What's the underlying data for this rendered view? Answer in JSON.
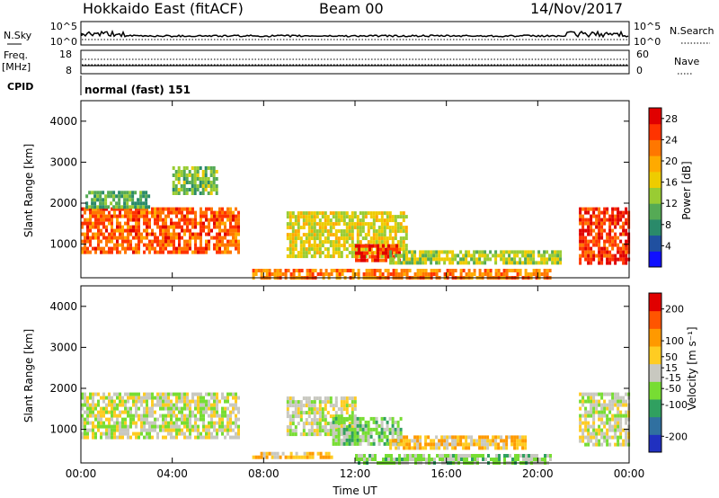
{
  "header": {
    "station": "Hokkaido East (fitACF)",
    "beam": "Beam 00",
    "date": "14/Nov/2017"
  },
  "small_panels": {
    "nsky": {
      "label": "N.Sky",
      "ticks": [
        "10^5",
        "10^0"
      ]
    },
    "nsearch": {
      "label": "N.Search",
      "ticks": [
        "10^5",
        "10^0"
      ]
    },
    "freq": {
      "label_line1": "Freq.",
      "label_line2": "[MHz]",
      "ticks": [
        "18",
        "8"
      ]
    },
    "nave": {
      "label": "Nave",
      "ticks": [
        "60",
        "0"
      ]
    },
    "cpid": {
      "label": "CPID",
      "value": "normal (fast) 151"
    }
  },
  "chart_data": [
    {
      "type": "heatmap",
      "panel": "power",
      "ylabel": "Slant Range [km]",
      "xlabel": "",
      "x_ticks": [
        "00:00",
        "04:00",
        "08:00",
        "12:00",
        "16:00",
        "20:00",
        "00:00"
      ],
      "x_range_hours": [
        0,
        24
      ],
      "y_ticks": [
        1000,
        2000,
        3000,
        4000
      ],
      "y_range_km": [
        180,
        4500
      ],
      "colorbar": {
        "label": "Power [dB]",
        "ticks": [
          4,
          8,
          12,
          16,
          20,
          24,
          28
        ],
        "range": [
          0,
          30
        ],
        "colors": [
          "#1010ff",
          "#2050a0",
          "#2a8a6a",
          "#55aa55",
          "#99cc33",
          "#eecc00",
          "#ffaa00",
          "#ff7700",
          "#ff3300",
          "#e00000"
        ]
      },
      "echo_regions": [
        {
          "t0": 0.0,
          "t1": 6.9,
          "r0": 780,
          "r1": 1900,
          "level": 24
        },
        {
          "t0": 0.2,
          "t1": 3.0,
          "r0": 1900,
          "r1": 2300,
          "level": 10
        },
        {
          "t0": 4.0,
          "t1": 6.0,
          "r0": 2200,
          "r1": 2900,
          "level": 12
        },
        {
          "t0": 9.0,
          "t1": 14.2,
          "r0": 700,
          "r1": 1800,
          "level": 16
        },
        {
          "t0": 12.0,
          "t1": 14.0,
          "r0": 600,
          "r1": 1000,
          "level": 26
        },
        {
          "t0": 13.5,
          "t1": 21.0,
          "r0": 580,
          "r1": 850,
          "level": 14
        },
        {
          "t0": 7.5,
          "t1": 20.5,
          "r0": 200,
          "r1": 400,
          "level": 22
        },
        {
          "t0": 21.8,
          "t1": 24.0,
          "r0": 500,
          "r1": 1900,
          "level": 26
        }
      ]
    },
    {
      "type": "heatmap",
      "panel": "velocity",
      "ylabel": "Slant Range [km]",
      "xlabel": "Time UT",
      "x_ticks": [
        "00:00",
        "04:00",
        "08:00",
        "12:00",
        "16:00",
        "20:00",
        "00:00"
      ],
      "x_range_hours": [
        0,
        24
      ],
      "y_ticks": [
        1000,
        2000,
        3000,
        4000
      ],
      "y_range_km": [
        180,
        4500
      ],
      "colorbar": {
        "label": "Velocity [m s⁻¹]",
        "ticks": [
          200,
          100,
          50,
          15,
          -15,
          -50,
          -100,
          -200
        ],
        "range": [
          -250,
          250
        ],
        "colors": [
          "#2030c0",
          "#3070a0",
          "#30a060",
          "#77dd33",
          "#c8c8c0",
          "#ffcc22",
          "#ff9900",
          "#ff5500",
          "#e00000"
        ]
      },
      "echo_regions": [
        {
          "t0": 0.0,
          "t1": 6.9,
          "r0": 780,
          "r1": 1900,
          "level": 0
        },
        {
          "t0": 9.0,
          "t1": 12.0,
          "r0": 900,
          "r1": 1800,
          "level": 0
        },
        {
          "t0": 11.0,
          "t1": 14.0,
          "r0": 600,
          "r1": 1300,
          "level": -50
        },
        {
          "t0": 13.5,
          "t1": 19.5,
          "r0": 580,
          "r1": 850,
          "level": 60
        },
        {
          "t0": 7.5,
          "t1": 11.0,
          "r0": 300,
          "r1": 450,
          "level": 60
        },
        {
          "t0": 12.0,
          "t1": 20.5,
          "r0": 200,
          "r1": 400,
          "level": -40
        },
        {
          "t0": 21.8,
          "t1": 24.0,
          "r0": 600,
          "r1": 1900,
          "level": 0
        }
      ]
    }
  ]
}
